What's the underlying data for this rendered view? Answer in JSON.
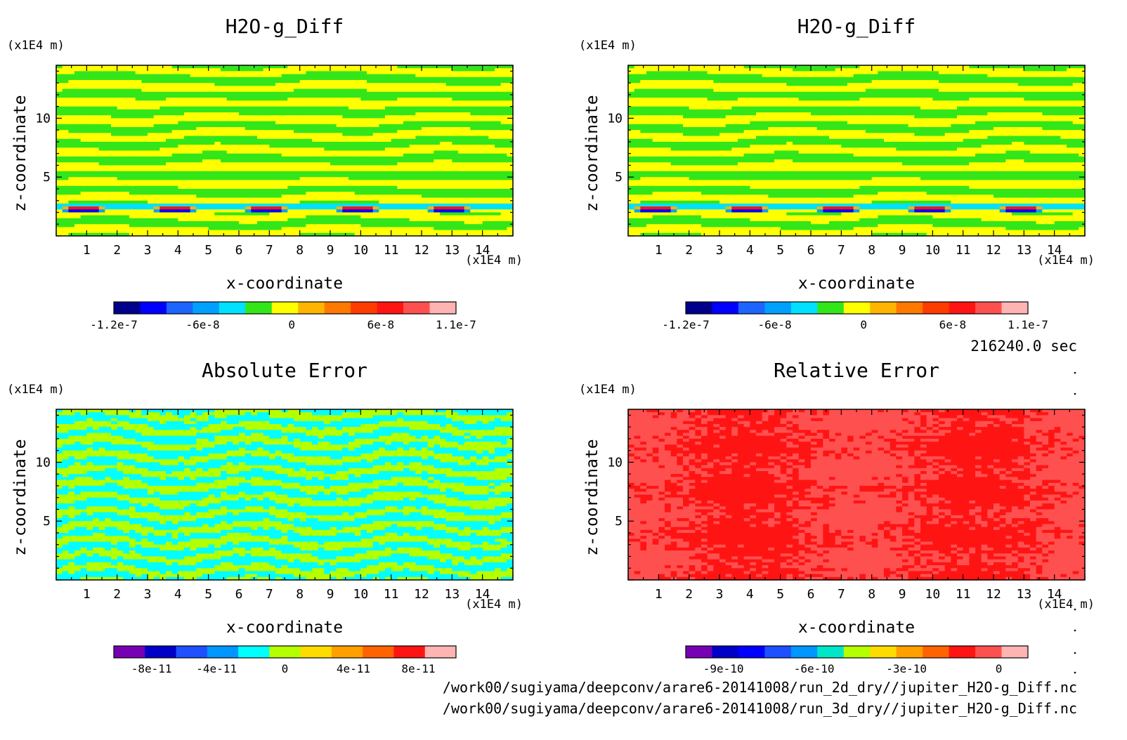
{
  "timestamp": "216240.0 sec",
  "file_paths": [
    "/work00/sugiyama/deepconv/arare6-20141008/run_2d_dry//jupiter_H2O-g_Diff.nc",
    "/work00/sugiyama/deepconv/arare6-20141008/run_3d_dry//jupiter_H2O-g_Diff.nc"
  ],
  "chart_data": [
    {
      "type": "heatmap",
      "title": "H2O-g_Diff",
      "xlabel": "x-coordinate",
      "ylabel": "z-coordinate",
      "x_unit": "(x1E4 m)",
      "y_unit": "(x1E4 m)",
      "x_ticks": [
        "1",
        "2",
        "3",
        "4",
        "5",
        "6",
        "7",
        "8",
        "9",
        "10",
        "11",
        "12",
        "13",
        "14"
      ],
      "y_ticks": [
        "5",
        "10"
      ],
      "xlim": [
        0,
        15
      ],
      "ylim": [
        0,
        14.5
      ],
      "pattern": "banded",
      "colorbar": {
        "colors": [
          "#00008b",
          "#0000ff",
          "#1e64ff",
          "#00a0ff",
          "#00e1ff",
          "#33e61a",
          "#ffff00",
          "#ffb400",
          "#ff7800",
          "#ff3c00",
          "#ff1414",
          "#ff5050",
          "#ffb4b4"
        ],
        "tick_labels": [
          "-1.2e-7",
          "-6e-8",
          "0",
          "6e-8",
          "1.1e-7"
        ]
      }
    },
    {
      "type": "heatmap",
      "title": "H2O-g_Diff",
      "xlabel": "x-coordinate",
      "ylabel": "z-coordinate",
      "x_unit": "(x1E4 m)",
      "y_unit": "(x1E4 m)",
      "x_ticks": [
        "1",
        "2",
        "3",
        "4",
        "5",
        "6",
        "7",
        "8",
        "9",
        "10",
        "11",
        "12",
        "13",
        "14"
      ],
      "y_ticks": [
        "5",
        "10"
      ],
      "xlim": [
        0,
        15
      ],
      "ylim": [
        0,
        14.5
      ],
      "pattern": "banded",
      "colorbar": {
        "colors": [
          "#00008b",
          "#0000ff",
          "#1e64ff",
          "#00a0ff",
          "#00e1ff",
          "#33e61a",
          "#ffff00",
          "#ffb400",
          "#ff7800",
          "#ff3c00",
          "#ff1414",
          "#ff5050",
          "#ffb4b4"
        ],
        "tick_labels": [
          "-1.2e-7",
          "-6e-8",
          "0",
          "6e-8",
          "1.1e-7"
        ]
      }
    },
    {
      "type": "heatmap",
      "title": "Absolute Error",
      "xlabel": "x-coordinate",
      "ylabel": "z-coordinate",
      "x_unit": "(x1E4 m)",
      "y_unit": "(x1E4 m)",
      "x_ticks": [
        "1",
        "2",
        "3",
        "4",
        "5",
        "6",
        "7",
        "8",
        "9",
        "10",
        "11",
        "12",
        "13",
        "14"
      ],
      "y_ticks": [
        "5",
        "10"
      ],
      "xlim": [
        0,
        15
      ],
      "ylim": [
        0,
        14.5
      ],
      "pattern": "noisy",
      "colorbar": {
        "colors": [
          "#7800b4",
          "#0000c8",
          "#1e50ff",
          "#0096ff",
          "#00ffff",
          "#b4ff00",
          "#ffdc00",
          "#ffa000",
          "#ff6400",
          "#ff1414",
          "#ffb4b4"
        ],
        "tick_labels": [
          "-8e-11",
          "-4e-11",
          "0",
          "4e-11",
          "8e-11"
        ]
      }
    },
    {
      "type": "heatmap",
      "title": "Relative Error",
      "xlabel": "x-coordinate",
      "ylabel": "z-coordinate",
      "x_unit": "(x1E4 m)",
      "y_unit": "(x1E4 m)",
      "x_ticks": [
        "1",
        "2",
        "3",
        "4",
        "5",
        "6",
        "7",
        "8",
        "9",
        "10",
        "11",
        "12",
        "13",
        "14"
      ],
      "y_ticks": [
        "5",
        "10"
      ],
      "xlim": [
        0,
        15
      ],
      "ylim": [
        0,
        14.5
      ],
      "pattern": "patchy",
      "colorbar": {
        "colors": [
          "#7800b4",
          "#0000c8",
          "#0000ff",
          "#1e50ff",
          "#0096ff",
          "#00e6c8",
          "#b4ff00",
          "#ffdc00",
          "#ffa000",
          "#ff6400",
          "#ff1414",
          "#ff5050",
          "#ffb4b4"
        ],
        "tick_labels": [
          "-9e-10",
          "-6e-10",
          "-3e-10",
          "0"
        ]
      }
    }
  ]
}
